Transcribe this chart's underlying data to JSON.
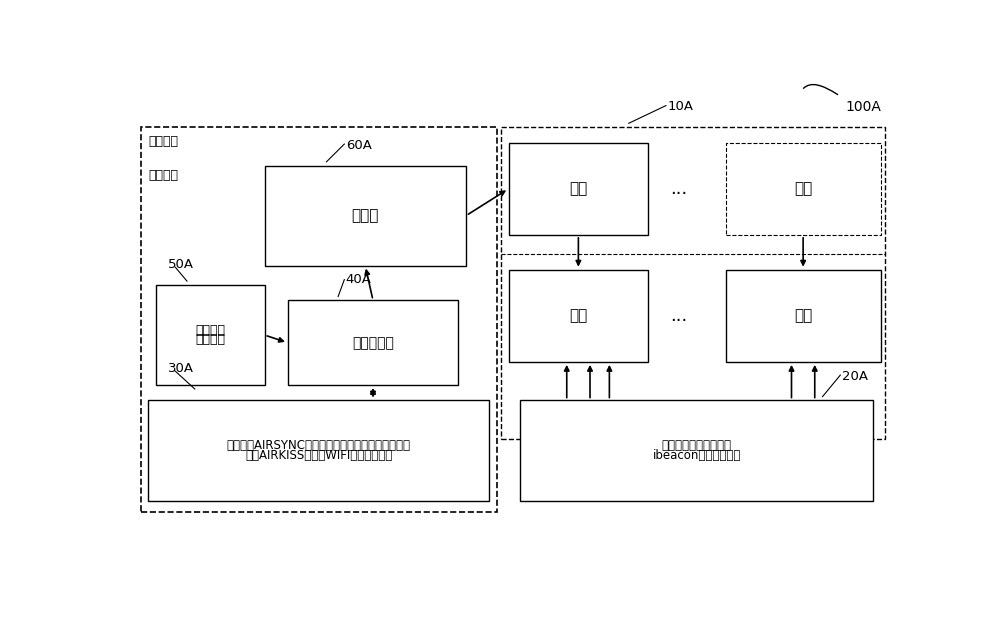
{
  "bg_color": "#ffffff",
  "fig_width": 10.0,
  "fig_height": 6.36,
  "label_100A": "100A",
  "label_10A": "10A",
  "label_60A": "60A",
  "label_50A": "50A",
  "label_40A": "40A",
  "label_30A": "30A",
  "label_20A": "20A",
  "box_display_label": "显示器",
  "box_video_storage_line1": "视频节目",
  "box_video_storage_line2": "存储设备",
  "box_video_player_label": "视频播放器",
  "box_user1_label": "用户",
  "box_user2_label": "用户",
  "box_phone1_label": "手机",
  "box_phone2_label": "手机",
  "box_comm_line1": "符合微信AIRSYNC协议的蓝牙无线通信设备或者符合",
  "box_comm_line2": "微信AIRKISS协议的WIFI无线通信设备",
  "box_ibeacon_line1": "符合微信播一播协议的",
  "box_ibeacon_line2": "ibeacon无线发射设备",
  "text_left_line1": "互动视频",
  "text_left_line2": "展示装置",
  "dots": "..."
}
